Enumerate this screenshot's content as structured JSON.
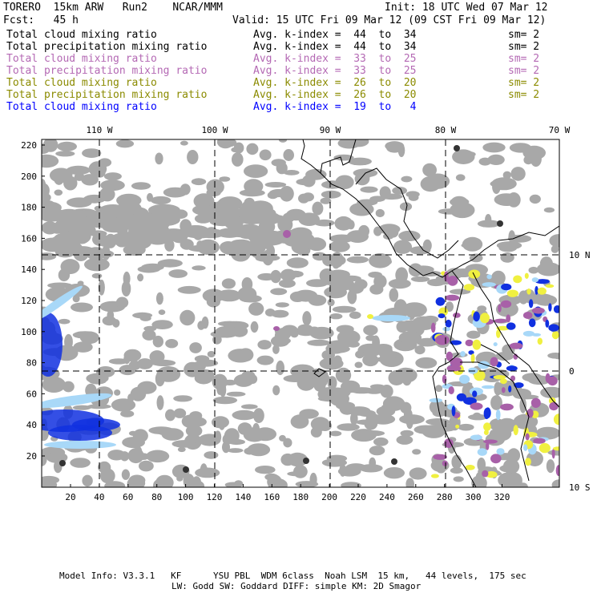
{
  "header": {
    "model": "TORERO  15km ARW   Run2    NCAR/MMM",
    "init": "Init: 18 UTC Wed 07 Mar 12",
    "fcst": "Fcst:   45 h",
    "valid": "Valid: 15 UTC Fri 09 Mar 12 (09 CST Fri 09 Mar 12)"
  },
  "legend_rows": [
    {
      "field": "Total cloud mixing ratio",
      "range": "Avg. k-index =  44  to  34",
      "sm": "sm= 2",
      "color": "#000000"
    },
    {
      "field": "Total precipitation mixing ratio",
      "range": "Avg. k-index =  44  to  34",
      "sm": "sm= 2",
      "color": "#000000"
    },
    {
      "field": "Total cloud mixing ratio",
      "range": "Avg. k-index =  33  to  25",
      "sm": "sm= 2",
      "color": "#b469b4"
    },
    {
      "field": "Total precipitation mixing ratio",
      "range": "Avg. k-index =  33  to  25",
      "sm": "sm= 2",
      "color": "#b469b4"
    },
    {
      "field": "Total cloud mixing ratio",
      "range": "Avg. k-index =  26  to  20",
      "sm": "sm= 2",
      "color": "#8b8b00"
    },
    {
      "field": "Total precipitation mixing ratio",
      "range": "Avg. k-index =  26  to  20",
      "sm": "sm= 2",
      "color": "#8b8b00"
    },
    {
      "field": "Total cloud mixing ratio",
      "range": "Avg. k-index =  19  to   4",
      "sm": "",
      "color": "#0000ff"
    }
  ],
  "map": {
    "lon_labels": [
      "110 W",
      "100 W",
      "90 W",
      "80 W",
      "70 W"
    ],
    "lat_labels": [
      "10 N",
      "0",
      "10 S"
    ],
    "y_ticks": [
      "220",
      "200",
      "180",
      "160",
      "140",
      "120",
      "100",
      "80",
      "60",
      "40",
      "20"
    ],
    "x_ticks": [
      "20",
      "40",
      "60",
      "80",
      "100",
      "120",
      "140",
      "160",
      "180",
      "200",
      "220",
      "240",
      "260",
      "280",
      "300",
      "320"
    ],
    "colors": {
      "cloud_gray": "#a8a8a8",
      "purple": "#a860a8",
      "yellow": "#f0f040",
      "blue": "#1030e0",
      "light_blue": "#a8d8f8"
    }
  },
  "footer": {
    "line1": "Model Info: V3.3.1   KF      YSU PBL  WDM 6class  Noah LSM  15 km,   44 levels,  175 sec",
    "line2": "LW: Godd SW: Goddard DIFF: simple KM: 2D Smagor"
  }
}
